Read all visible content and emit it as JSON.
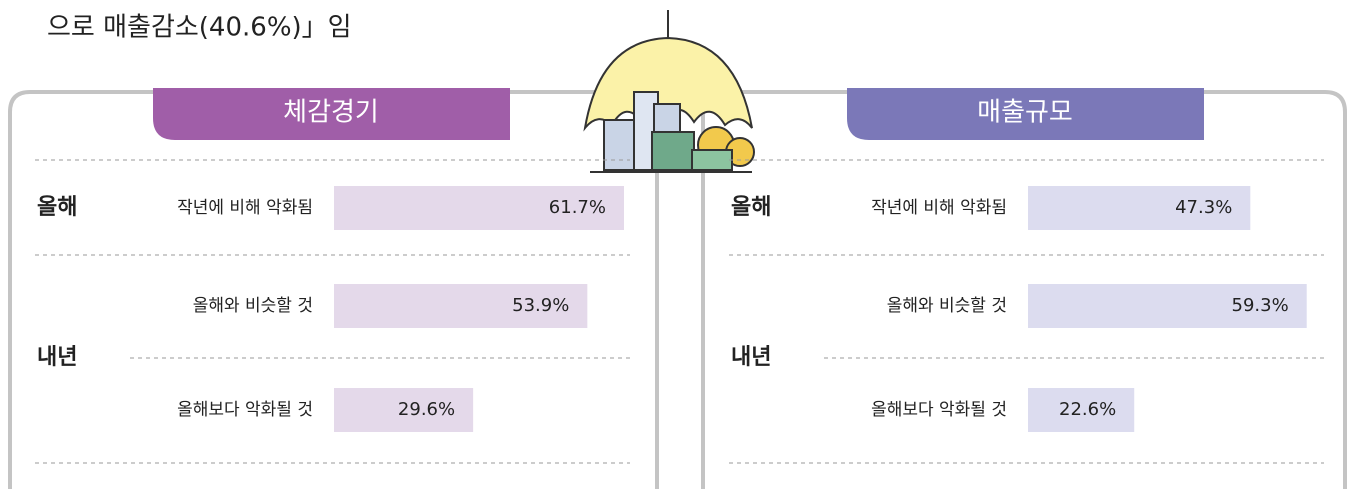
{
  "header_text": "으로 매출감소(40.6%)」임",
  "chart_data": [
    {
      "type": "bar",
      "orientation": "horizontal",
      "title": "체감경기",
      "title_color": "#a05ea8",
      "row_groups": [
        "올해",
        "내년"
      ],
      "categories": [
        "작년에 비해 악화됨",
        "올해와 비슷할 것",
        "올해보다 악화될 것"
      ],
      "values": [
        61.7,
        53.9,
        29.6
      ],
      "value_labels": [
        "61.7%",
        "53.9%",
        "29.6%"
      ],
      "color": "#e4d9ea"
    },
    {
      "type": "bar",
      "orientation": "horizontal",
      "title": "매출규모",
      "title_color": "#7b78b8",
      "row_groups": [
        "올해",
        "내년"
      ],
      "categories": [
        "작년에 비해 악화됨",
        "올해와 비슷할 것",
        "올해보다 악화될 것"
      ],
      "values": [
        47.3,
        59.3,
        22.6
      ],
      "value_labels": [
        "47.3%",
        "59.3%",
        "22.6%"
      ],
      "color": "#dcdcef"
    }
  ]
}
